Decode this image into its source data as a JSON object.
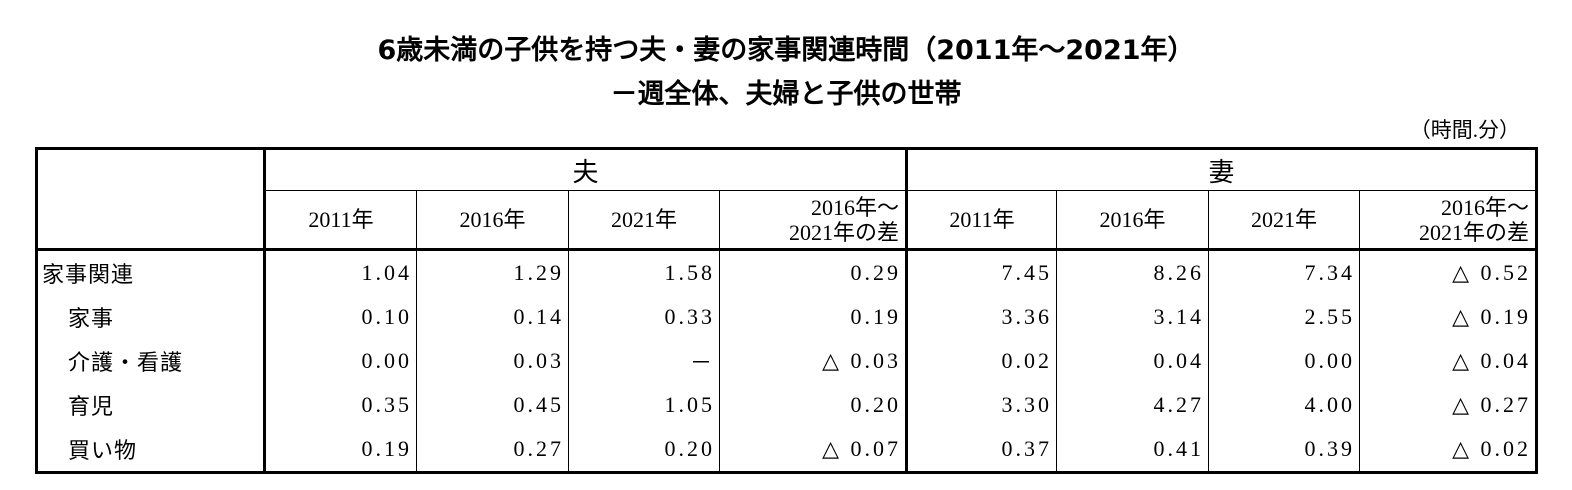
{
  "header": {
    "title": [
      "6歳未満の子供を持つ夫・妻の家事関連時間（2011年～2021年）",
      "－週全体、夫婦と子供の世帯"
    ],
    "unit": "（時間.分）"
  },
  "table": {
    "groups": [
      "夫",
      "妻"
    ],
    "columns": [
      [
        "2011年"
      ],
      [
        "2016年"
      ],
      [
        "2021年"
      ],
      [
        "2016年～",
        "2021年の差"
      ],
      [
        "2011年"
      ],
      [
        "2016年"
      ],
      [
        "2021年"
      ],
      [
        "2016年～",
        "2021年の差"
      ]
    ],
    "rows": [
      [
        "家事関連",
        "1.04",
        "1.29",
        "1.58",
        "0.29",
        "7.45",
        "8.26",
        "7.34",
        "△ 0.52"
      ],
      [
        "家事",
        "0.10",
        "0.14",
        "0.33",
        "0.19",
        "3.36",
        "3.14",
        "2.55",
        "△ 0.19"
      ],
      [
        "介護・看護",
        "0.00",
        "0.03",
        "－",
        "△ 0.03",
        "0.02",
        "0.04",
        "0.00",
        "△ 0.04"
      ],
      [
        "育児",
        "0.35",
        "0.45",
        "1.05",
        "0.20",
        "3.30",
        "4.27",
        "4.00",
        "△ 0.27"
      ],
      [
        "買い物",
        "0.19",
        "0.27",
        "0.20",
        "△ 0.07",
        "0.37",
        "0.41",
        "0.39",
        "△ 0.02"
      ]
    ]
  }
}
